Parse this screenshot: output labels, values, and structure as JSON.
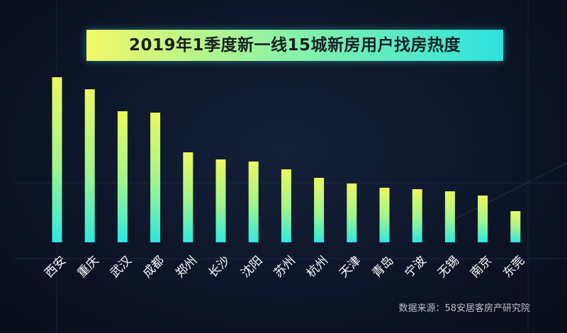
{
  "title": "2019年1季度新一线15城新房用户找房热度",
  "source": "数据来源：58安居客房产研究院",
  "colors": {
    "bar_top": "#ecf85e",
    "bar_bottom": "#2ee8e0",
    "title_text": "#1c1f24",
    "label": "#ffffff",
    "background": "#0b1224"
  },
  "chart_data": {
    "type": "bar",
    "title": "2019年1季度新一线15城新房用户找房热度",
    "categories": [
      "西安",
      "重庆",
      "武汉",
      "成都",
      "郑州",
      "长沙",
      "沈阳",
      "苏州",
      "杭州",
      "天津",
      "青岛",
      "宁波",
      "无锡",
      "南京",
      "东莞"
    ],
    "values": [
      233,
      216,
      185,
      183,
      127,
      117,
      114,
      103,
      91,
      83,
      77,
      75,
      72,
      66,
      44
    ],
    "ylim": [
      0,
      240
    ],
    "axes_visible": false,
    "grid": false,
    "legend": "none"
  }
}
